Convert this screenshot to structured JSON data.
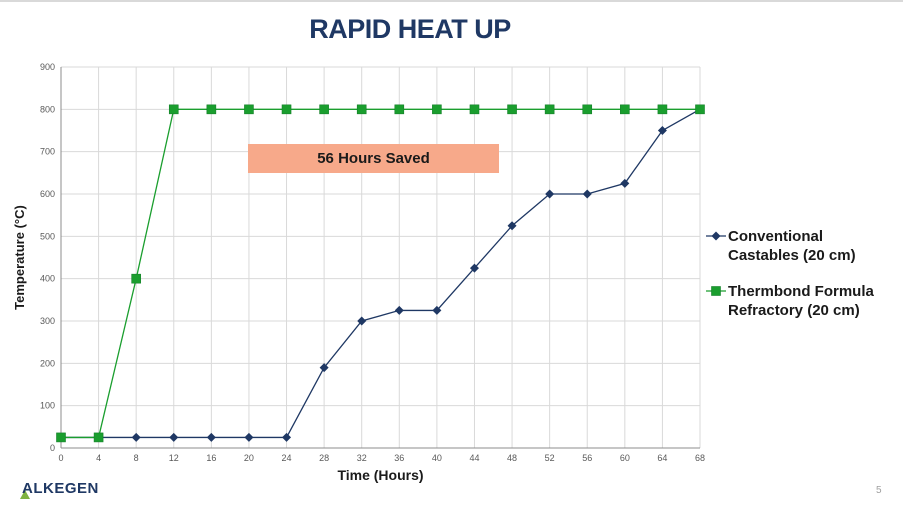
{
  "slide": {
    "title": "RAPID HEAT UP",
    "page_number": "5",
    "logo_text": "ALKEGEN"
  },
  "callout": {
    "text": "56 Hours Saved"
  },
  "chart_data": {
    "type": "line",
    "xlabel": "Time (Hours)",
    "ylabel": "Temperature (°C)",
    "xlim": [
      0,
      68
    ],
    "ylim": [
      0,
      900
    ],
    "xticks": [
      0,
      4,
      8,
      12,
      16,
      20,
      24,
      28,
      32,
      36,
      40,
      44,
      48,
      52,
      56,
      60,
      64,
      68
    ],
    "yticks": [
      0,
      100,
      200,
      300,
      400,
      500,
      600,
      700,
      800,
      900
    ],
    "grid": true,
    "legend_position": "right",
    "series": [
      {
        "name": "Conventional Castables (20 cm)",
        "legend_lines": [
          "Conventional",
          "Castables (20 cm)"
        ],
        "color": "#1f3864",
        "marker": "diamond",
        "x": [
          0,
          4,
          8,
          12,
          16,
          20,
          24,
          28,
          32,
          36,
          40,
          44,
          48,
          52,
          56,
          60,
          64,
          68
        ],
        "y": [
          25,
          25,
          25,
          25,
          25,
          25,
          25,
          190,
          300,
          325,
          325,
          425,
          525,
          600,
          600,
          625,
          750,
          800
        ]
      },
      {
        "name": "Thermbond Formula Refractory (20 cm)",
        "legend_lines": [
          "Thermbond Formula",
          "Refractory (20 cm)"
        ],
        "color": "#1a9e2e",
        "marker": "square",
        "x": [
          0,
          4,
          8,
          12,
          16,
          20,
          24,
          28,
          32,
          36,
          40,
          44,
          48,
          52,
          56,
          60,
          64,
          68
        ],
        "y": [
          25,
          25,
          400,
          800,
          800,
          800,
          800,
          800,
          800,
          800,
          800,
          800,
          800,
          800,
          800,
          800,
          800,
          800
        ]
      }
    ]
  }
}
